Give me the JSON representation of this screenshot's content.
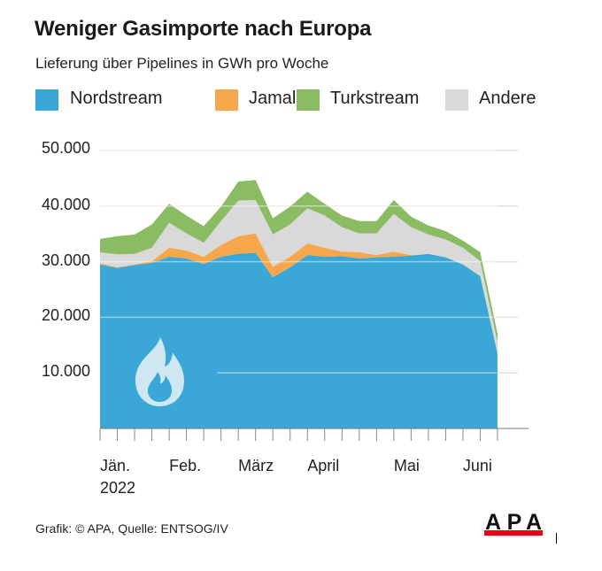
{
  "chart_data": {
    "type": "area",
    "stacked": true,
    "title": "Weniger Gasimporte nach Europa",
    "subtitle": "Lieferung über Pipelines in GWh pro Woche",
    "x": [
      1,
      2,
      3,
      4,
      5,
      6,
      7,
      8,
      9,
      10,
      11,
      12,
      13,
      14,
      15,
      16,
      17,
      18,
      19,
      20,
      21,
      22,
      23,
      24
    ],
    "x_tick_labels": [
      {
        "x": 1,
        "label": "Jän.",
        "sublabel": "2022"
      },
      {
        "x": 5,
        "label": "Feb."
      },
      {
        "x": 9,
        "label": "März"
      },
      {
        "x": 13,
        "label": "April"
      },
      {
        "x": 18,
        "label": "Mai"
      },
      {
        "x": 22,
        "label": "Juni"
      }
    ],
    "y_ticks": [
      "10.000",
      "20.000",
      "30.000",
      "40.000",
      "50.000"
    ],
    "y_tick_values": [
      10000,
      20000,
      30000,
      40000,
      50000
    ],
    "ylim": [
      0,
      50000
    ],
    "grid": true,
    "legend_position": "top",
    "series": [
      {
        "name": "Nordstream",
        "color": "#3aa7d7",
        "values": [
          29500,
          28900,
          29400,
          29800,
          30900,
          30600,
          29600,
          30900,
          31400,
          31600,
          27200,
          29000,
          31200,
          30900,
          31000,
          30600,
          30800,
          30900,
          31100,
          31400,
          30800,
          29500,
          27400,
          13500
        ]
      },
      {
        "name": "Jamal",
        "color": "#f6a64b",
        "values": [
          200,
          100,
          100,
          300,
          1600,
          1400,
          1300,
          2100,
          3200,
          3500,
          1900,
          1900,
          2100,
          1600,
          800,
          1100,
          400,
          900,
          100,
          0,
          0,
          0,
          0,
          0
        ]
      },
      {
        "name": "Andere",
        "color": "#d9d9d9",
        "values": [
          2000,
          2300,
          1900,
          2400,
          4500,
          3100,
          2500,
          4300,
          6400,
          6000,
          5800,
          5800,
          6300,
          5800,
          4400,
          3400,
          3900,
          6800,
          5000,
          3500,
          3200,
          3000,
          2700,
          2000
        ]
      },
      {
        "name": "Turkstream",
        "color": "#8bbb62",
        "values": [
          2400,
          3300,
          3500,
          4200,
          3400,
          3200,
          3000,
          2600,
          3400,
          3600,
          2900,
          3200,
          3000,
          2100,
          2100,
          2200,
          2200,
          2500,
          1900,
          1600,
          1500,
          1300,
          1600,
          1600
        ]
      }
    ],
    "legend_order": [
      "Nordstream",
      "Jamal",
      "Turkstream",
      "Andere"
    ]
  },
  "footer": "Grafik: © APA, Quelle: ENTSOG/IV",
  "logo_text": "APA",
  "icons": {
    "chart_icon": "flame-icon"
  }
}
